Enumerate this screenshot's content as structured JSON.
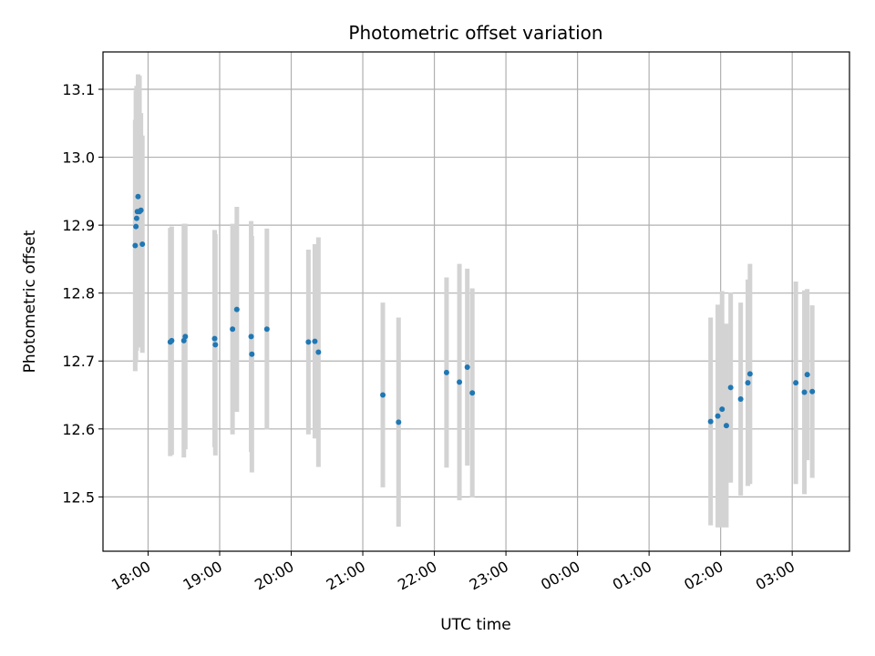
{
  "chart_data": {
    "type": "scatter",
    "title": "Photometric offset variation",
    "xlabel": "UTC time",
    "ylabel": "Photometric offset",
    "x_unit": "UTC hours (times after midnight continue past 24)",
    "xlim": [
      17.37,
      27.8
    ],
    "ylim": [
      12.42,
      13.155
    ],
    "grid": true,
    "xticks": [
      {
        "value": 18,
        "label": "18:00"
      },
      {
        "value": 19,
        "label": "19:00"
      },
      {
        "value": 20,
        "label": "20:00"
      },
      {
        "value": 21,
        "label": "21:00"
      },
      {
        "value": 22,
        "label": "22:00"
      },
      {
        "value": 23,
        "label": "23:00"
      },
      {
        "value": 24,
        "label": "00:00"
      },
      {
        "value": 25,
        "label": "01:00"
      },
      {
        "value": 26,
        "label": "02:00"
      },
      {
        "value": 27,
        "label": "03:00"
      }
    ],
    "yticks": [
      {
        "value": 12.5,
        "label": "12.5"
      },
      {
        "value": 12.6,
        "label": "12.6"
      },
      {
        "value": 12.7,
        "label": "12.7"
      },
      {
        "value": 12.8,
        "label": "12.8"
      },
      {
        "value": 12.9,
        "label": "12.9"
      },
      {
        "value": 13.0,
        "label": "13.0"
      },
      {
        "value": 13.1,
        "label": "13.1"
      }
    ],
    "point_color": "#1f77b4",
    "errorbar_color": "#d3d3d3",
    "points": [
      {
        "x": 17.82,
        "y": 12.87,
        "err": 0.185
      },
      {
        "x": 17.83,
        "y": 12.898,
        "err": 0.2
      },
      {
        "x": 17.84,
        "y": 12.91,
        "err": 0.195
      },
      {
        "x": 17.85,
        "y": 12.92,
        "err": 0.18
      },
      {
        "x": 17.86,
        "y": 12.942,
        "err": 0.18
      },
      {
        "x": 17.88,
        "y": 12.92,
        "err": 0.2
      },
      {
        "x": 17.9,
        "y": 12.922,
        "err": 0.143
      },
      {
        "x": 17.92,
        "y": 12.872,
        "err": 0.16
      },
      {
        "x": 18.31,
        "y": 12.728,
        "err": 0.168
      },
      {
        "x": 18.33,
        "y": 12.73,
        "err": 0.168
      },
      {
        "x": 18.5,
        "y": 12.73,
        "err": 0.172
      },
      {
        "x": 18.52,
        "y": 12.736,
        "err": 0.166
      },
      {
        "x": 18.93,
        "y": 12.733,
        "err": 0.16
      },
      {
        "x": 18.94,
        "y": 12.724,
        "err": 0.163
      },
      {
        "x": 19.18,
        "y": 12.747,
        "err": 0.155
      },
      {
        "x": 19.24,
        "y": 12.776,
        "err": 0.151
      },
      {
        "x": 19.44,
        "y": 12.736,
        "err": 0.17
      },
      {
        "x": 19.45,
        "y": 12.71,
        "err": 0.174
      },
      {
        "x": 19.66,
        "y": 12.747,
        "err": 0.148
      },
      {
        "x": 20.24,
        "y": 12.728,
        "err": 0.136
      },
      {
        "x": 20.33,
        "y": 12.729,
        "err": 0.143
      },
      {
        "x": 20.38,
        "y": 12.713,
        "err": 0.169
      },
      {
        "x": 21.28,
        "y": 12.65,
        "err": 0.136
      },
      {
        "x": 21.5,
        "y": 12.61,
        "err": 0.154
      },
      {
        "x": 22.17,
        "y": 12.683,
        "err": 0.14
      },
      {
        "x": 22.35,
        "y": 12.669,
        "err": 0.174
      },
      {
        "x": 22.46,
        "y": 12.691,
        "err": 0.145
      },
      {
        "x": 22.53,
        "y": 12.653,
        "err": 0.154
      },
      {
        "x": 25.86,
        "y": 12.611,
        "err": 0.153
      },
      {
        "x": 25.96,
        "y": 12.619,
        "err": 0.164
      },
      {
        "x": 26.02,
        "y": 12.629,
        "err": 0.174
      },
      {
        "x": 26.08,
        "y": 12.605,
        "err": 0.15
      },
      {
        "x": 26.14,
        "y": 12.661,
        "err": 0.14
      },
      {
        "x": 26.28,
        "y": 12.644,
        "err": 0.142
      },
      {
        "x": 26.38,
        "y": 12.668,
        "err": 0.152
      },
      {
        "x": 26.41,
        "y": 12.681,
        "err": 0.162
      },
      {
        "x": 27.05,
        "y": 12.668,
        "err": 0.149
      },
      {
        "x": 27.17,
        "y": 12.654,
        "err": 0.15
      },
      {
        "x": 27.21,
        "y": 12.68,
        "err": 0.126
      },
      {
        "x": 27.28,
        "y": 12.655,
        "err": 0.127
      }
    ]
  }
}
